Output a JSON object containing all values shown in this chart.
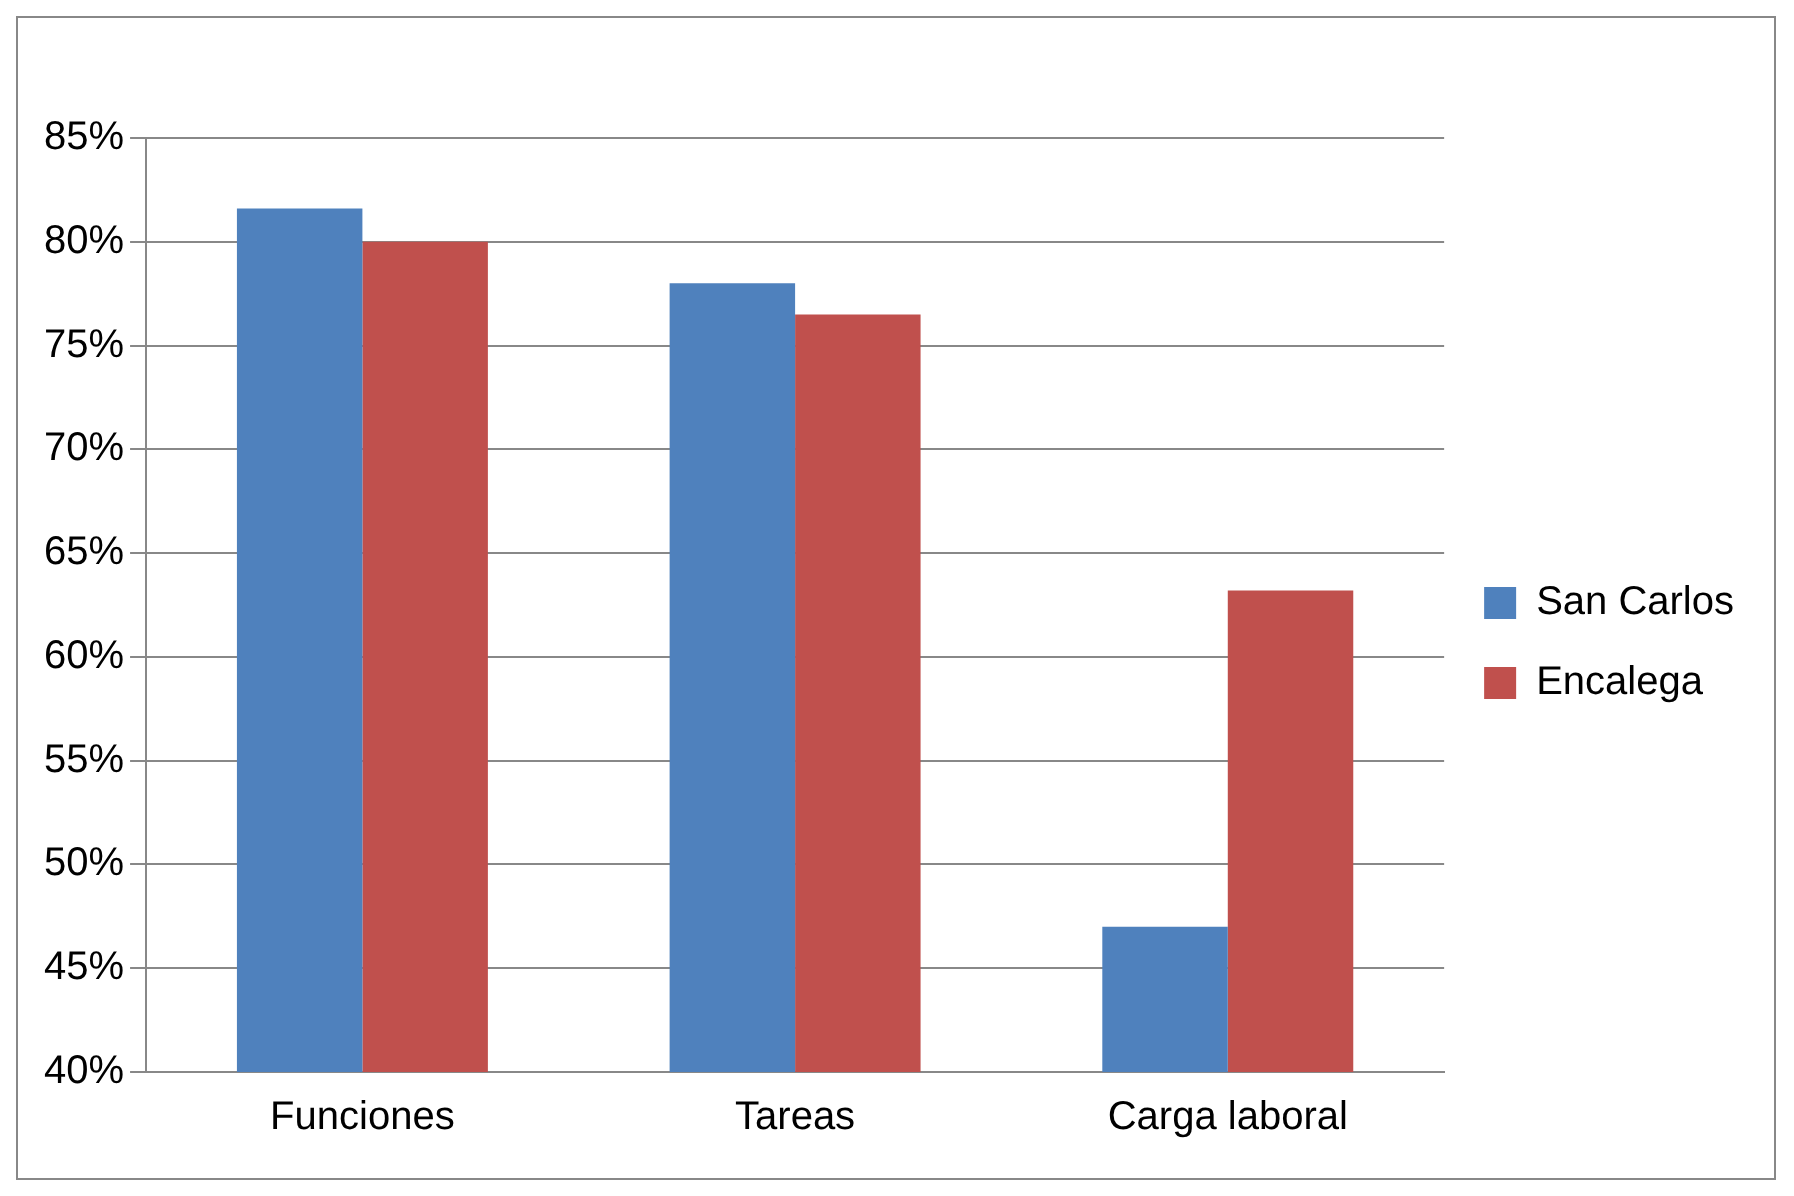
{
  "chart_data": {
    "type": "bar",
    "categories": [
      "Funciones",
      "Tareas",
      "Carga laboral"
    ],
    "series": [
      {
        "name": "San Carlos",
        "color": "#4f81bd",
        "values": [
          81.6,
          78,
          47
        ]
      },
      {
        "name": "Encalega",
        "color": "#c0504d",
        "values": [
          80,
          76.5,
          63.2
        ]
      }
    ],
    "ylim": [
      40,
      85
    ],
    "yticks": [
      {
        "value": 40,
        "label": "40%"
      },
      {
        "value": 45,
        "label": "45%"
      },
      {
        "value": 50,
        "label": "50%"
      },
      {
        "value": 55,
        "label": "55%"
      },
      {
        "value": 60,
        "label": "60%"
      },
      {
        "value": 65,
        "label": "65%"
      },
      {
        "value": 70,
        "label": "70%"
      },
      {
        "value": 75,
        "label": "75%"
      },
      {
        "value": 80,
        "label": "80%"
      },
      {
        "value": 85,
        "label": "85%"
      }
    ],
    "grid": "y",
    "legend": "right"
  }
}
